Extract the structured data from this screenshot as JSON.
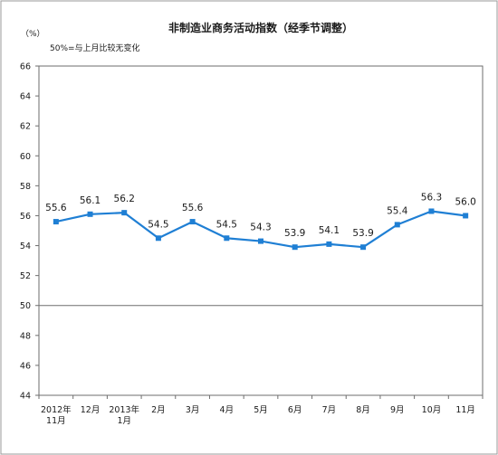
{
  "chart_data": {
    "type": "line",
    "title": "非制造业商务活动指数（经季节调整）",
    "y_unit": "（%）",
    "note": "50%=与上月比较无变化",
    "ylim": [
      44,
      66
    ],
    "yticks": [
      44,
      46,
      48,
      50,
      52,
      54,
      56,
      58,
      60,
      62,
      64,
      66
    ],
    "reference_line": 50,
    "categories": [
      [
        "2012年",
        "11月"
      ],
      [
        "12月"
      ],
      [
        "2013年",
        "1月"
      ],
      [
        "2月"
      ],
      [
        "3月"
      ],
      [
        "4月"
      ],
      [
        "5月"
      ],
      [
        "6月"
      ],
      [
        "7月"
      ],
      [
        "8月"
      ],
      [
        "9月"
      ],
      [
        "10月"
      ],
      [
        "11月"
      ]
    ],
    "series": [
      {
        "values": [
          55.6,
          56.1,
          56.2,
          54.5,
          55.6,
          54.5,
          54.3,
          53.9,
          54.1,
          53.9,
          55.4,
          56.3,
          56.0
        ],
        "labels": [
          "55.6",
          "56.1",
          "56.2",
          "54.5",
          "55.6",
          "54.5",
          "54.3",
          "53.9",
          "54.1",
          "53.9",
          "55.4",
          "56.3",
          "56.0"
        ],
        "color": "#1f7fd4"
      }
    ],
    "grid": false,
    "legend": "none"
  }
}
